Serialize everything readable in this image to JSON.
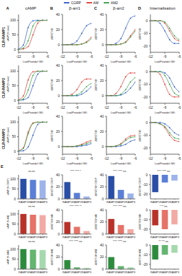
{
  "figure": {
    "columns": [
      {
        "letter": "A",
        "title": "cAMP"
      },
      {
        "letter": "B",
        "title": "β-arr1"
      },
      {
        "letter": "C",
        "title": "β-arr2"
      },
      {
        "letter": "D",
        "title": "Internalisation"
      }
    ],
    "rows": [
      "CLR-RAMP1",
      "CLR-RAMP2",
      "CLR-RAMP3"
    ],
    "section_letter": "E"
  },
  "chart_data": [
    {
      "type": "line",
      "legend": "top",
      "marker": "circle",
      "x": [
        -12,
        -11,
        -10,
        -9,
        -8,
        -7,
        -6
      ],
      "xlim": [
        -12,
        -6
      ],
      "xticks": [
        -12,
        -9,
        -6
      ],
      "ylim": [
        -10,
        120
      ],
      "yticks": [
        0,
        50,
        100
      ],
      "x_label": "Log[Peptide] (M)",
      "y_label": "cAMP (% max)",
      "series": [
        {
          "name": "CGRP",
          "color": "#3a62c9",
          "values": [
            2,
            15,
            75,
            98,
            100,
            100,
            100
          ]
        },
        {
          "name": "AM",
          "color": "#e0443c",
          "values": [
            0,
            2,
            10,
            50,
            90,
            100,
            100
          ]
        },
        {
          "name": "AM2",
          "color": "#3fa34d",
          "values": [
            0,
            5,
            30,
            80,
            98,
            100,
            100
          ]
        }
      ]
    },
    {
      "type": "line",
      "marker": "circle",
      "x": [
        -12,
        -11,
        -10,
        -9,
        -8,
        -7,
        -6
      ],
      "xlim": [
        -12,
        -6
      ],
      "xticks": [
        -12,
        -9,
        -6
      ],
      "ylim": [
        -10,
        40
      ],
      "yticks": [
        0,
        20,
        40
      ],
      "x_label": "Log[Peptide] (M)",
      "y_label": "ΔBRET/10⁴",
      "series": [
        {
          "name": "CGRP",
          "color": "#3a62c9",
          "values": [
            0,
            0,
            1,
            5,
            15,
            25,
            28
          ]
        },
        {
          "name": "AM",
          "color": "#e0443c",
          "values": [
            0,
            0,
            0,
            0,
            1,
            4,
            10
          ]
        },
        {
          "name": "AM2",
          "color": "#3fa34d",
          "values": [
            0,
            0,
            0,
            0,
            1,
            3,
            8
          ]
        }
      ]
    },
    {
      "type": "line",
      "marker": "circle",
      "x": [
        -12,
        -11,
        -10,
        -9,
        -8,
        -7,
        -6
      ],
      "xlim": [
        -12,
        -6
      ],
      "xticks": [
        -12,
        -9,
        -6
      ],
      "ylim": [
        -10,
        40
      ],
      "yticks": [
        0,
        20,
        40
      ],
      "x_label": "Log[Peptide] (M)",
      "y_label": "ΔBRET/10⁴",
      "series": [
        {
          "name": "CGRP",
          "color": "#3a62c9",
          "values": [
            0,
            0,
            2,
            8,
            22,
            35,
            38
          ]
        },
        {
          "name": "AM",
          "color": "#e0443c",
          "values": [
            0,
            0,
            0,
            1,
            4,
            12,
            20
          ]
        },
        {
          "name": "AM2",
          "color": "#3fa34d",
          "values": [
            0,
            0,
            0,
            1,
            3,
            10,
            18
          ]
        }
      ]
    },
    {
      "type": "line",
      "marker": "circle",
      "x": [
        -12,
        -11,
        -10,
        -9,
        -8,
        -7,
        -6
      ],
      "xlim": [
        -12,
        -6
      ],
      "xticks": [
        -12,
        -9,
        -6
      ],
      "ylim": [
        -25,
        5
      ],
      "yticks": [
        -20,
        -10,
        0
      ],
      "x_label": "Log[Peptide] (M)",
      "y_label": "ΔBRET/10⁴",
      "series": [
        {
          "name": "CGRP",
          "color": "#3a62c9",
          "values": [
            0,
            0,
            -2,
            -8,
            -15,
            -18,
            -18
          ]
        },
        {
          "name": "AM",
          "color": "#e0443c",
          "values": [
            0,
            0,
            0,
            -2,
            -8,
            -14,
            -16
          ]
        },
        {
          "name": "AM2",
          "color": "#3fa34d",
          "values": [
            0,
            0,
            0,
            -1,
            -6,
            -12,
            -15
          ]
        }
      ]
    },
    {
      "type": "line",
      "marker": "circle",
      "x": [
        -12,
        -11,
        -10,
        -9,
        -8,
        -7,
        -6
      ],
      "xlim": [
        -12,
        -6
      ],
      "xticks": [
        -12,
        -9,
        -6
      ],
      "ylim": [
        -10,
        120
      ],
      "yticks": [
        0,
        50,
        100
      ],
      "x_label": "Log[Peptide] (M)",
      "y_label": "cAMP (% max)",
      "series": [
        {
          "name": "CGRP",
          "color": "#3a62c9",
          "values": [
            0,
            2,
            10,
            50,
            90,
            100,
            100
          ]
        },
        {
          "name": "AM",
          "color": "#e0443c",
          "values": [
            2,
            15,
            70,
            98,
            100,
            100,
            100
          ]
        },
        {
          "name": "AM2",
          "color": "#3fa34d",
          "values": [
            0,
            5,
            35,
            85,
            100,
            100,
            100
          ]
        }
      ]
    },
    {
      "type": "line",
      "marker": "circle",
      "x": [
        -12,
        -11,
        -10,
        -9,
        -8,
        -7,
        -6
      ],
      "xlim": [
        -12,
        -6
      ],
      "xticks": [
        -12,
        -9,
        -6
      ],
      "ylim": [
        -10,
        40
      ],
      "yticks": [
        0,
        20,
        40
      ],
      "x_label": "Log[Peptide] (M)",
      "y_label": "ΔBRET/10⁴",
      "series": [
        {
          "name": "CGRP",
          "color": "#3a62c9",
          "values": [
            0,
            0,
            0,
            0,
            2,
            6,
            12
          ]
        },
        {
          "name": "AM",
          "color": "#e0443c",
          "values": [
            0,
            0,
            2,
            8,
            18,
            22,
            22
          ]
        },
        {
          "name": "AM2",
          "color": "#3fa34d",
          "values": [
            0,
            0,
            0,
            1,
            5,
            12,
            16
          ]
        }
      ]
    },
    {
      "type": "line",
      "marker": "circle",
      "x": [
        -12,
        -11,
        -10,
        -9,
        -8,
        -7,
        -6
      ],
      "xlim": [
        -12,
        -6
      ],
      "xticks": [
        -12,
        -9,
        -6
      ],
      "ylim": [
        -10,
        40
      ],
      "yticks": [
        0,
        20,
        40
      ],
      "x_label": "Log[Peptide] (M)",
      "y_label": "ΔBRET/10⁴",
      "series": [
        {
          "name": "CGRP",
          "color": "#3a62c9",
          "values": [
            0,
            0,
            0,
            1,
            4,
            10,
            18
          ]
        },
        {
          "name": "AM",
          "color": "#e0443c",
          "values": [
            0,
            0,
            3,
            12,
            25,
            30,
            30
          ]
        },
        {
          "name": "AM2",
          "color": "#3fa34d",
          "values": [
            0,
            0,
            0,
            2,
            8,
            18,
            24
          ]
        }
      ]
    },
    {
      "type": "line",
      "marker": "circle",
      "x": [
        -12,
        -11,
        -10,
        -9,
        -8,
        -7,
        -6
      ],
      "xlim": [
        -12,
        -6
      ],
      "xticks": [
        -12,
        -9,
        -6
      ],
      "ylim": [
        -25,
        5
      ],
      "yticks": [
        -20,
        -10,
        0
      ],
      "x_label": "Log[Peptide] (M)",
      "y_label": "ΔBRET/10⁴",
      "series": [
        {
          "name": "CGRP",
          "color": "#3a62c9",
          "values": [
            0,
            0,
            0,
            -1,
            -5,
            -12,
            -16
          ]
        },
        {
          "name": "AM",
          "color": "#e0443c",
          "values": [
            0,
            0,
            -2,
            -10,
            -18,
            -20,
            -20
          ]
        },
        {
          "name": "AM2",
          "color": "#3fa34d",
          "values": [
            0,
            0,
            0,
            -3,
            -10,
            -17,
            -19
          ]
        }
      ]
    },
    {
      "type": "line",
      "marker": "circle",
      "x": [
        -12,
        -11,
        -10,
        -9,
        -8,
        -7,
        -6
      ],
      "xlim": [
        -12,
        -6
      ],
      "xticks": [
        -12,
        -9,
        -6
      ],
      "ylim": [
        -10,
        120
      ],
      "yticks": [
        0,
        50,
        100
      ],
      "x_label": "Log[Peptide] (M)",
      "y_label": "cAMP (% max)",
      "series": [
        {
          "name": "CGRP",
          "color": "#3a62c9",
          "values": [
            0,
            2,
            15,
            55,
            92,
            100,
            100
          ]
        },
        {
          "name": "AM",
          "color": "#e0443c",
          "values": [
            2,
            12,
            65,
            97,
            100,
            100,
            100
          ]
        },
        {
          "name": "AM2",
          "color": "#3fa34d",
          "values": [
            1,
            10,
            60,
            95,
            100,
            100,
            100
          ]
        }
      ]
    },
    {
      "type": "line",
      "marker": "circle",
      "x": [
        -12,
        -11,
        -10,
        -9,
        -8,
        -7,
        -6
      ],
      "xlim": [
        -12,
        -6
      ],
      "xticks": [
        -12,
        -9,
        -6
      ],
      "ylim": [
        -10,
        40
      ],
      "yticks": [
        0,
        20,
        40
      ],
      "x_label": "Log[Peptide] (M)",
      "y_label": "ΔBRET/10⁴",
      "series": [
        {
          "name": "CGRP",
          "color": "#3a62c9",
          "values": [
            0,
            0,
            0,
            0,
            1,
            2,
            4
          ]
        },
        {
          "name": "AM",
          "color": "#e0443c",
          "values": [
            0,
            0,
            0,
            1,
            3,
            6,
            8
          ]
        },
        {
          "name": "AM2",
          "color": "#3fa34d",
          "values": [
            0,
            0,
            0,
            1,
            2,
            4,
            6
          ]
        }
      ]
    },
    {
      "type": "line",
      "marker": "circle",
      "x": [
        -12,
        -11,
        -10,
        -9,
        -8,
        -7,
        -6
      ],
      "xlim": [
        -12,
        -6
      ],
      "xticks": [
        -12,
        -9,
        -6
      ],
      "ylim": [
        -10,
        40
      ],
      "yticks": [
        0,
        20,
        40
      ],
      "x_label": "Log[Peptide] (M)",
      "y_label": "ΔBRET/10⁴",
      "series": [
        {
          "name": "CGRP",
          "color": "#3a62c9",
          "values": [
            0,
            0,
            0,
            1,
            3,
            7,
            9
          ]
        },
        {
          "name": "AM",
          "color": "#e0443c",
          "values": [
            0,
            0,
            1,
            4,
            10,
            14,
            15
          ]
        },
        {
          "name": "AM2",
          "color": "#3fa34d",
          "values": [
            0,
            0,
            1,
            3,
            8,
            12,
            13
          ]
        }
      ]
    },
    {
      "type": "line",
      "marker": "circle",
      "x": [
        -12,
        -11,
        -10,
        -9,
        -8,
        -7,
        -6
      ],
      "xlim": [
        -12,
        -6
      ],
      "xticks": [
        -12,
        -9,
        -6
      ],
      "ylim": [
        -25,
        5
      ],
      "yticks": [
        -20,
        -10,
        0
      ],
      "x_label": "Log[Peptide] (M)",
      "y_label": "ΔBRET/10⁴",
      "series": [
        {
          "name": "CGRP",
          "color": "#3a62c9",
          "values": [
            0,
            0,
            0,
            -1,
            -4,
            -8,
            -10
          ]
        },
        {
          "name": "AM",
          "color": "#e0443c",
          "values": [
            0,
            0,
            -1,
            -4,
            -10,
            -14,
            -15
          ]
        },
        {
          "name": "AM2",
          "color": "#3fa34d",
          "values": [
            0,
            0,
            -1,
            -3,
            -8,
            -12,
            -13
          ]
        }
      ]
    },
    {
      "type": "bar",
      "categories": [
        "RAMP1",
        "RAMP2",
        "RAMP3"
      ],
      "values": [
        100,
        95,
        92
      ],
      "colors": [
        "#2a4ea6",
        "#5b7fd6",
        "#9db3ea"
      ],
      "ylim": [
        0,
        120
      ],
      "yticks": [
        0,
        50,
        100
      ],
      "y_label": "cAMP (% CGRP)",
      "annotations": [
        "ns",
        "ns"
      ]
    },
    {
      "type": "bar",
      "categories": [
        "RAMP1",
        "RAMP2",
        "RAMP3"
      ],
      "values": [
        28,
        10,
        4
      ],
      "colors": [
        "#2a4ea6",
        "#5b7fd6",
        "#9db3ea"
      ],
      "ylim": [
        0,
        40
      ],
      "yticks": [
        0,
        20,
        40
      ],
      "y_label": "ΔBRET/10⁴ CGRP",
      "annotations": [
        "****",
        "****",
        "*"
      ]
    },
    {
      "type": "bar",
      "categories": [
        "RAMP1",
        "RAMP2",
        "RAMP3"
      ],
      "values": [
        38,
        15,
        9
      ],
      "colors": [
        "#2a4ea6",
        "#5b7fd6",
        "#9db3ea"
      ],
      "ylim": [
        0,
        40
      ],
      "yticks": [
        0,
        20,
        40
      ],
      "y_label": "ΔBRET/10⁴ CGRP",
      "annotations": [
        "****",
        "****",
        "ns"
      ]
    },
    {
      "type": "bar",
      "categories": [
        "RAMP1",
        "RAMP2",
        "RAMP3"
      ],
      "values": [
        -18,
        -8,
        -6
      ],
      "colors": [
        "#2a4ea6",
        "#5b7fd6",
        "#9db3ea"
      ],
      "ylim": [
        -25,
        0
      ],
      "yticks": [
        -20,
        -10,
        0
      ],
      "y_label": "ΔBRET/10⁴ CGRP",
      "annotations": [
        "****",
        "****",
        "ns"
      ]
    },
    {
      "type": "bar",
      "categories": [
        "RAMP1",
        "RAMP2",
        "RAMP3"
      ],
      "values": [
        100,
        96,
        94
      ],
      "colors": [
        "#b8322a",
        "#e57368",
        "#f2aaa4"
      ],
      "ylim": [
        0,
        120
      ],
      "yticks": [
        0,
        50,
        100
      ],
      "y_label": "cAMP (% AM)",
      "annotations": [
        "ns",
        "ns"
      ]
    },
    {
      "type": "bar",
      "categories": [
        "RAMP1",
        "RAMP2",
        "RAMP3"
      ],
      "values": [
        20,
        12,
        5
      ],
      "colors": [
        "#b8322a",
        "#e57368",
        "#f2aaa4"
      ],
      "ylim": [
        0,
        40
      ],
      "yticks": [
        0,
        20,
        40
      ],
      "y_label": "ΔBRET/10⁴ AM",
      "annotations": [
        "****",
        "****",
        "**"
      ]
    },
    {
      "type": "bar",
      "categories": [
        "RAMP1",
        "RAMP2",
        "RAMP3"
      ],
      "values": [
        25,
        15,
        8
      ],
      "colors": [
        "#b8322a",
        "#e57368",
        "#f2aaa4"
      ],
      "ylim": [
        0,
        40
      ],
      "yticks": [
        0,
        20,
        40
      ],
      "y_label": "ΔBRET/10⁴ AM",
      "annotations": [
        "****",
        "****",
        "ns"
      ]
    },
    {
      "type": "bar",
      "categories": [
        "RAMP1",
        "RAMP2",
        "RAMP3"
      ],
      "values": [
        -16,
        -20,
        -15
      ],
      "colors": [
        "#b8322a",
        "#e57368",
        "#f2aaa4"
      ],
      "ylim": [
        -25,
        0
      ],
      "yticks": [
        -20,
        -10,
        0
      ],
      "y_label": "ΔBRET/10⁴ AM",
      "annotations": [
        "*",
        "**",
        "ns"
      ]
    },
    {
      "type": "bar",
      "categories": [
        "RAMP1",
        "RAMP2",
        "RAMP3"
      ],
      "values": [
        100,
        97,
        95
      ],
      "colors": [
        "#2e8b3e",
        "#63b56f",
        "#a6d8ad"
      ],
      "ylim": [
        0,
        120
      ],
      "yticks": [
        0,
        50,
        100
      ],
      "y_label": "cAMP (% AM2)",
      "annotations": [
        "ns",
        "ns"
      ]
    },
    {
      "type": "bar",
      "categories": [
        "RAMP1",
        "RAMP2",
        "RAMP3"
      ],
      "values": [
        15,
        3,
        2
      ],
      "colors": [
        "#2e8b3e",
        "#63b56f",
        "#a6d8ad"
      ],
      "ylim": [
        0,
        40
      ],
      "yticks": [
        0,
        20,
        40
      ],
      "y_label": "ΔBRET/10⁴ AM2",
      "annotations": [
        "****",
        "****",
        "ns"
      ]
    },
    {
      "type": "bar",
      "categories": [
        "RAMP1",
        "RAMP2",
        "RAMP3"
      ],
      "values": [
        20,
        5,
        3
      ],
      "colors": [
        "#2e8b3e",
        "#63b56f",
        "#a6d8ad"
      ],
      "ylim": [
        0,
        40
      ],
      "yticks": [
        0,
        20,
        40
      ],
      "y_label": "ΔBRET/10⁴ AM2",
      "annotations": [
        "****",
        "****",
        "ns"
      ]
    },
    {
      "type": "bar",
      "categories": [
        "RAMP1",
        "RAMP2",
        "RAMP3"
      ],
      "values": [
        -15,
        -10,
        -8
      ],
      "colors": [
        "#2e8b3e",
        "#63b56f",
        "#a6d8ad"
      ],
      "ylim": [
        -25,
        0
      ],
      "yticks": [
        -20,
        -10,
        0
      ],
      "y_label": "ΔBRET/10⁴ AM2",
      "annotations": [
        "**",
        "***",
        "ns"
      ]
    }
  ]
}
